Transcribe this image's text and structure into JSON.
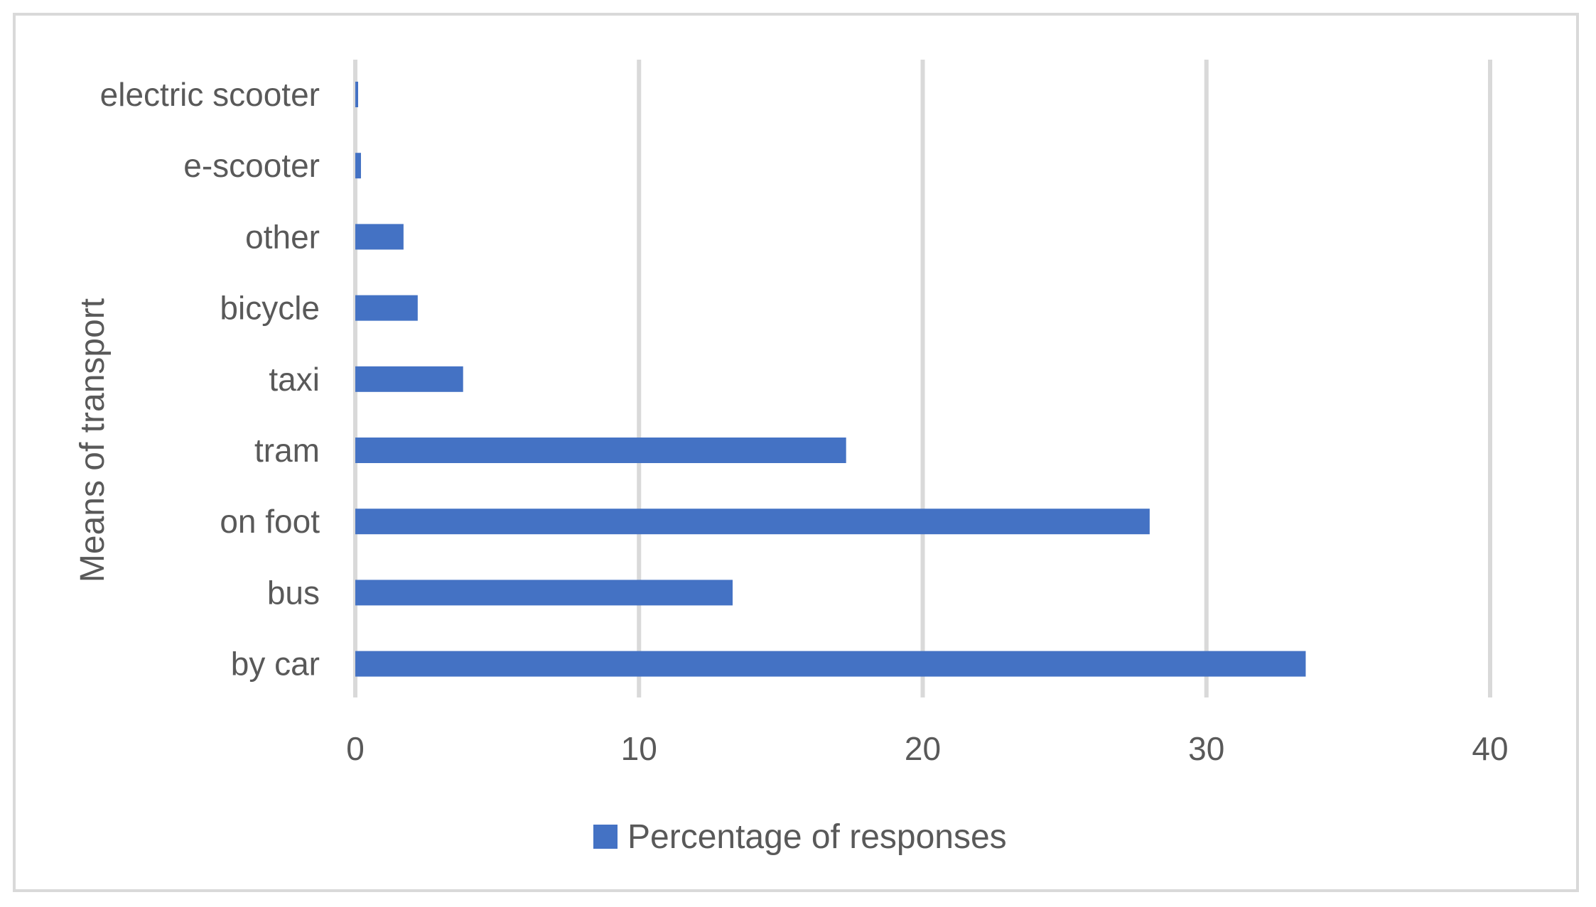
{
  "chart_data": {
    "type": "bar",
    "orientation": "horizontal",
    "categories": [
      "by car",
      "bus",
      "on foot",
      "tram",
      "taxi",
      "bicycle",
      "other",
      "e-scooter",
      "electric scooter"
    ],
    "series": [
      {
        "name": "Percentage of responses",
        "values": [
          33.5,
          13.3,
          28.0,
          17.3,
          3.8,
          2.2,
          1.7,
          0.2,
          0.1
        ],
        "color": "#4472c4"
      }
    ],
    "ylabel": "Means of transport",
    "xlabel": "",
    "xlim": [
      0,
      40
    ],
    "xticks": [
      0,
      10,
      20,
      30,
      40
    ],
    "grid": "vertical",
    "legend_position": "bottom"
  }
}
